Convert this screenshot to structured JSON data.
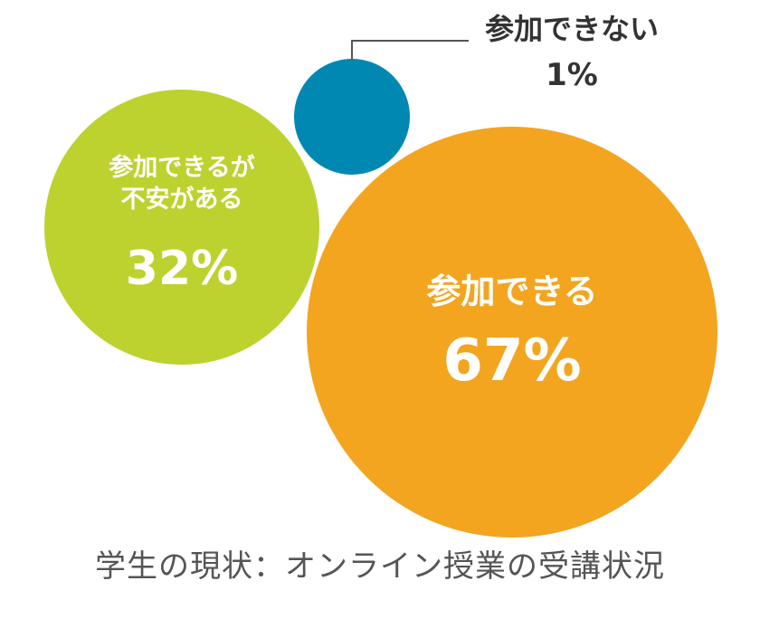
{
  "chart_data": {
    "type": "bubble",
    "title": "学生の現状：オンライン授業の受講状況",
    "series": [
      {
        "label": "参加できる",
        "value": 67,
        "display": "67%",
        "color": "#f3a520"
      },
      {
        "label": "参加できるが不安がある",
        "label_lines": [
          "参加できるが",
          "不安がある"
        ],
        "value": 32,
        "display": "32%",
        "color": "#bdd22e"
      },
      {
        "label": "参加できない",
        "value": 1,
        "display": "1%",
        "color": "#0088b2"
      }
    ]
  }
}
